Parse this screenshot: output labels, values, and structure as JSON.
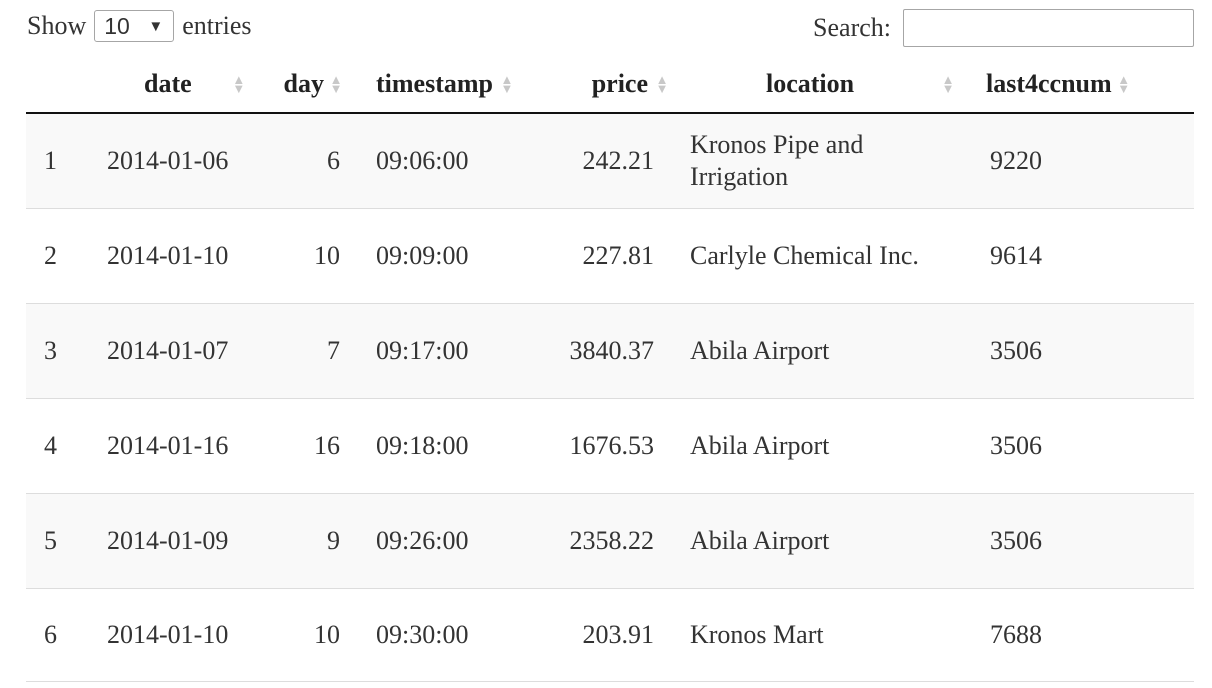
{
  "length_menu": {
    "prefix": "Show",
    "selected": "10",
    "suffix": "entries"
  },
  "search": {
    "label": "Search:",
    "value": "",
    "placeholder": ""
  },
  "table": {
    "columns": [
      "",
      "date",
      "day",
      "timestamp",
      "price",
      "location",
      "last4ccnum"
    ],
    "rows": [
      [
        "1",
        "2014-01-06",
        "6",
        "09:06:00",
        "242.21",
        "Kronos Pipe and Irrigation",
        "9220"
      ],
      [
        "2",
        "2014-01-10",
        "10",
        "09:09:00",
        "227.81",
        "Carlyle Chemical Inc.",
        "9614"
      ],
      [
        "3",
        "2014-01-07",
        "7",
        "09:17:00",
        "3840.37",
        "Abila Airport",
        "3506"
      ],
      [
        "4",
        "2014-01-16",
        "16",
        "09:18:00",
        "1676.53",
        "Abila Airport",
        "3506"
      ],
      [
        "5",
        "2014-01-09",
        "9",
        "09:26:00",
        "2358.22",
        "Abila Airport",
        "3506"
      ],
      [
        "6",
        "2014-01-10",
        "10",
        "09:30:00",
        "203.91",
        "Kronos Mart",
        "7688"
      ]
    ]
  },
  "icons": {
    "sort": "sort-both-icon",
    "dropdown": "caret-down-icon"
  },
  "colors": {
    "odd_row": "#f9f9f9",
    "border": "#dddddd",
    "header_rule": "#111111",
    "sort_icon": "#c8c8c8"
  }
}
